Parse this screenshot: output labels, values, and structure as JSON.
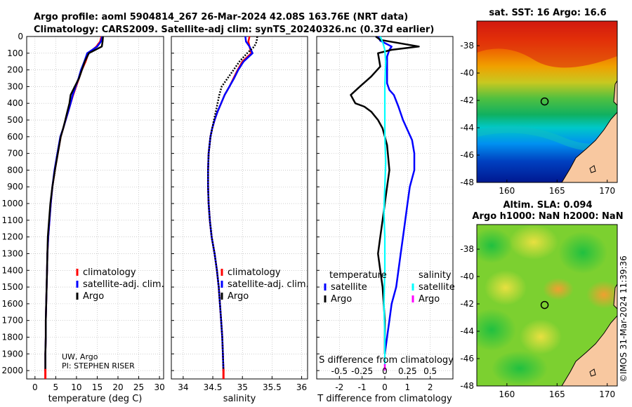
{
  "header": {
    "line1": "Argo profile: aoml 5904814_267 26-Mar-2024 42.08S 163.76E (NRT data)",
    "line2": "Climatology: CARS2009. Satellite-adj clim: synTS_20240326.nc (0.37d earlier)"
  },
  "colors": {
    "climatology": "#ff0000",
    "satellite_adj": "#0000ff",
    "argo": "#000000",
    "satellite_s": "#00ffff",
    "argo_s": "#ff00ff",
    "land": "#f8c8a0"
  },
  "credits": {
    "line1": "UW, Argo",
    "line2": "PI: STEPHEN RISER"
  },
  "stamp": "©IMOS 31-Mar-2024 11:39:36",
  "chart_data": [
    {
      "type": "line",
      "id": "temperature",
      "xlabel": "temperature (deg C)",
      "xlim": [
        -2,
        31
      ],
      "xticks": [
        0,
        5,
        10,
        15,
        20,
        25,
        30
      ],
      "ylim": [
        2050,
        0
      ],
      "yticks": [
        0,
        100,
        200,
        300,
        400,
        500,
        600,
        700,
        800,
        900,
        1000,
        1100,
        1200,
        1300,
        1400,
        1500,
        1600,
        1700,
        1800,
        1900,
        2000
      ],
      "legend": [
        "climatology",
        "satellite-adj. clim.",
        "Argo"
      ],
      "series": [
        {
          "name": "climatology",
          "color_key": "climatology",
          "style": "solid",
          "x": [
            16.0,
            15.7,
            14.8,
            12.9,
            12.2,
            11.3,
            10.6,
            9.9,
            9.2,
            8.6,
            8.0,
            7.4,
            6.8,
            6.2,
            5.5,
            4.8,
            4.2,
            3.8,
            3.5,
            3.2,
            3.0,
            2.9,
            2.8,
            2.7,
            2.6,
            2.6,
            2.5,
            2.5
          ],
          "y": [
            0,
            30,
            60,
            100,
            150,
            200,
            250,
            300,
            350,
            400,
            450,
            500,
            550,
            600,
            700,
            800,
            900,
            1000,
            1100,
            1200,
            1300,
            1400,
            1500,
            1600,
            1700,
            1800,
            1900,
            2000
          ]
        },
        {
          "name": "satellite-adj. clim.",
          "color_key": "satellite_adj",
          "style": "solid",
          "x": [
            16.2,
            15.9,
            15.0,
            12.6,
            11.9,
            11.1,
            10.5,
            9.8,
            9.1,
            8.6,
            8.0,
            7.4,
            6.8,
            6.1,
            5.4,
            4.7,
            4.2,
            3.8,
            3.5,
            3.2,
            3.0,
            2.9,
            2.8,
            2.7,
            2.6,
            2.6,
            2.5,
            2.5
          ],
          "y": [
            0,
            30,
            60,
            100,
            150,
            200,
            250,
            300,
            350,
            400,
            450,
            500,
            550,
            600,
            700,
            800,
            900,
            1000,
            1100,
            1200,
            1300,
            1400,
            1500,
            1600,
            1700,
            1800,
            1900,
            2000
          ]
        },
        {
          "name": "Argo",
          "color_key": "argo",
          "style": "solid",
          "x": [
            16.4,
            16.3,
            16.1,
            13.0,
            12.0,
            11.3,
            10.6,
            9.6,
            8.6,
            8.3,
            7.8,
            7.3,
            6.8,
            6.2,
            5.5,
            4.8,
            4.2,
            3.7,
            3.4,
            3.1,
            3.0,
            2.9,
            2.8,
            2.7,
            2.6,
            2.6,
            2.5,
            2.5
          ],
          "y": [
            0,
            30,
            60,
            100,
            150,
            200,
            250,
            300,
            350,
            400,
            450,
            500,
            550,
            600,
            700,
            800,
            900,
            1000,
            1100,
            1200,
            1300,
            1400,
            1500,
            1600,
            1700,
            1800,
            1900,
            2000
          ]
        }
      ]
    },
    {
      "type": "line",
      "id": "salinity",
      "xlabel": "salinity",
      "xlim": [
        33.8,
        36.1
      ],
      "xticks": [
        34,
        34.5,
        35,
        35.5,
        36
      ],
      "ylim": [
        2050,
        0
      ],
      "legend": [
        "climatology",
        "satellite-adj. clim.",
        "Argo"
      ],
      "series": [
        {
          "name": "climatology",
          "color_key": "climatology",
          "style": "solid",
          "x": [
            35.12,
            35.1,
            35.12,
            35.15,
            35.0,
            34.92,
            34.85,
            34.78,
            34.7,
            34.64,
            34.58,
            34.53,
            34.49,
            34.46,
            34.43,
            34.42,
            34.42,
            34.43,
            34.45,
            34.48,
            34.53,
            34.57,
            34.6,
            34.62,
            34.64,
            34.66,
            34.67,
            34.68
          ],
          "y": [
            0,
            30,
            60,
            100,
            150,
            200,
            250,
            300,
            350,
            400,
            450,
            500,
            550,
            600,
            700,
            800,
            900,
            1000,
            1100,
            1200,
            1300,
            1400,
            1500,
            1600,
            1700,
            1800,
            1900,
            2000
          ]
        },
        {
          "name": "satellite-adj. clim.",
          "color_key": "satellite_adj",
          "style": "solid",
          "x": [
            35.05,
            35.06,
            35.12,
            35.17,
            35.02,
            34.93,
            34.86,
            34.78,
            34.7,
            34.64,
            34.58,
            34.53,
            34.49,
            34.46,
            34.43,
            34.42,
            34.42,
            34.43,
            34.45,
            34.48,
            34.53,
            34.57,
            34.6,
            34.62,
            34.64,
            34.66,
            34.67,
            34.68
          ],
          "y": [
            0,
            30,
            60,
            100,
            150,
            200,
            250,
            300,
            350,
            400,
            450,
            500,
            550,
            600,
            700,
            800,
            900,
            1000,
            1100,
            1200,
            1300,
            1400,
            1500,
            1600,
            1700,
            1800,
            1900,
            2000
          ]
        },
        {
          "name": "Argo",
          "color_key": "argo",
          "style": "dotted",
          "x": [
            35.25,
            35.24,
            35.2,
            35.08,
            34.95,
            34.85,
            34.75,
            34.65,
            34.61,
            34.58,
            34.55,
            34.52,
            34.49,
            34.46,
            34.43,
            34.42,
            34.42,
            34.43,
            34.45,
            34.48,
            34.53,
            34.57,
            34.6,
            34.62,
            34.64,
            34.66,
            34.67,
            34.68
          ],
          "y": [
            0,
            30,
            60,
            100,
            150,
            200,
            250,
            300,
            350,
            400,
            450,
            500,
            550,
            600,
            700,
            800,
            900,
            1000,
            1100,
            1200,
            1300,
            1400,
            1500,
            1600,
            1700,
            1800,
            1900,
            2000
          ]
        }
      ]
    },
    {
      "type": "line",
      "id": "difference",
      "xlabel": "T difference from climatology",
      "xlabel_top": "S difference from climatology",
      "xlim": [
        -3,
        3
      ],
      "xticks": [
        -2,
        -1,
        0,
        1,
        2
      ],
      "s_ticks": [
        -0.5,
        -0.25,
        0,
        0.25,
        0.5
      ],
      "ylim": [
        2050,
        0
      ],
      "legend_titles": [
        "temperature",
        "salinity"
      ],
      "legend": [
        "satellite",
        "Argo",
        "satellite",
        "Argo"
      ],
      "series": [
        {
          "name": "temperature satellite",
          "color_key": "satellite_adj",
          "x": [
            -0.3,
            -0.2,
            0.3,
            0.2,
            0.1,
            0.1,
            0.1,
            0.2,
            0.4,
            0.6,
            0.8,
            1.0,
            1.2,
            1.3,
            1.3,
            1.2,
            1.1,
            1.0,
            0.9,
            0.8,
            0.7,
            0.6,
            0.5,
            0.3,
            0.2,
            0.1,
            0.0
          ],
          "y": [
            0,
            25,
            60,
            80,
            120,
            200,
            280,
            320,
            350,
            420,
            500,
            560,
            620,
            700,
            800,
            850,
            900,
            1000,
            1100,
            1200,
            1300,
            1400,
            1500,
            1600,
            1700,
            1800,
            1900
          ]
        },
        {
          "name": "temperature Argo",
          "color_key": "argo",
          "x": [
            -0.4,
            -0.2,
            1.5,
            0.3,
            -0.3,
            -0.2,
            -0.6,
            -1.1,
            -1.5,
            -1.3,
            -0.9,
            -0.6,
            -0.3,
            -0.1,
            0.1,
            0.2,
            0.1,
            0.0,
            -0.1,
            -0.2,
            -0.3,
            -0.2,
            -0.1,
            0.0,
            0.0
          ],
          "y": [
            0,
            20,
            60,
            80,
            100,
            180,
            240,
            300,
            350,
            400,
            420,
            450,
            500,
            550,
            650,
            800,
            900,
            1000,
            1100,
            1200,
            1300,
            1400,
            1500,
            1700,
            1900
          ]
        },
        {
          "name": "salinity satellite",
          "color_key": "satellite_s",
          "x": [
            -0.05,
            -0.02,
            0.0,
            0.01,
            0.0,
            0.0,
            0.0,
            0.01,
            0.0,
            -0.01,
            0.0,
            0.0,
            -0.01,
            0.0,
            0.0
          ],
          "y": [
            0,
            40,
            80,
            150,
            300,
            450,
            600,
            750,
            900,
            1050,
            1200,
            1400,
            1600,
            1800,
            2000
          ]
        },
        {
          "name": "salinity Argo",
          "color_key": "argo_s",
          "x": [
            0.0,
            0.0
          ],
          "y": [
            1960,
            2000
          ]
        }
      ]
    },
    {
      "type": "heatmap",
      "id": "sst_map",
      "title": "sat. SST: 16 Argo: 16.6",
      "xticks": [
        160,
        165,
        170
      ],
      "yticks": [
        -38,
        -40,
        -42,
        -44,
        -46,
        -48
      ],
      "marker": {
        "lon": 163.76,
        "lat": -42.08
      }
    },
    {
      "type": "heatmap",
      "id": "sla_map",
      "title_line1": "Altim. SLA: 0.094",
      "title_line2": "Argo h1000: NaN h2000: NaN",
      "xticks": [
        160,
        165,
        170
      ],
      "yticks": [
        -38,
        -40,
        -42,
        -44,
        -46,
        -48
      ],
      "marker": {
        "lon": 163.76,
        "lat": -42.08
      }
    }
  ]
}
